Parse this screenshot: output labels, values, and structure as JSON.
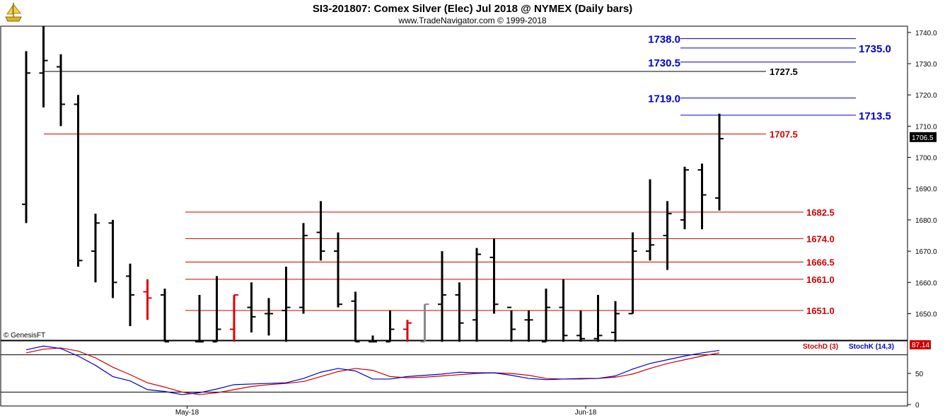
{
  "header": {
    "title": "SI3-201807:  Comex Silver (Elec) Jul 2018 @ NYMEX  (Daily bars)",
    "subtitle": "www.TradeNavigator.com © 1999-2018",
    "logo_icon": "pirate-ship-logo-icon"
  },
  "watermark": "© GenesisFT",
  "colors": {
    "blue_level": "#0000cc",
    "red_level": "#cc0000",
    "black_level": "#000000",
    "stoch_d": "#cc0000",
    "stoch_k": "#0000cc",
    "bar_black": "#000000",
    "bar_red": "#dd0000",
    "bar_gray": "#888888"
  },
  "chart_data": [
    {
      "type": "ohlc",
      "ylim": [
        1641.5,
        1742
      ],
      "y_ticks": [
        1650,
        1660,
        1670,
        1680,
        1690,
        1700,
        1710,
        1720,
        1730,
        1740
      ],
      "y_tick_labels": [
        "1650.0",
        "1660.0",
        "1670.0",
        "1680.0",
        "1690.0",
        "1700.0",
        "1710.0",
        "1720.0",
        "1730.0",
        "1740.0"
      ],
      "x_labels": [
        {
          "label": "May-18",
          "index": 9
        },
        {
          "label": "Jun-18",
          "index": 32
        }
      ],
      "current_price_label": "1706.5",
      "current_price": 1706.5,
      "bars": [
        {
          "i": 0,
          "o": 1685,
          "h": 1734,
          "l": 1679,
          "c": 1727,
          "color": "black"
        },
        {
          "i": 1,
          "o": 1727,
          "h": 1742,
          "l": 1716,
          "c": 1731,
          "color": "black"
        },
        {
          "i": 2,
          "o": 1729,
          "h": 1733,
          "l": 1710,
          "c": 1717,
          "color": "black"
        },
        {
          "i": 3,
          "o": 1717,
          "h": 1720,
          "l": 1665,
          "c": 1667,
          "color": "black"
        },
        {
          "i": 4,
          "o": 1670,
          "h": 1682,
          "l": 1660,
          "c": 1679,
          "color": "black"
        },
        {
          "i": 5,
          "o": 1679,
          "h": 1680,
          "l": 1655,
          "c": 1660,
          "color": "black"
        },
        {
          "i": 6,
          "o": 1662,
          "h": 1666,
          "l": 1646,
          "c": 1656,
          "color": "black"
        },
        {
          "i": 7,
          "o": 1657,
          "h": 1661,
          "l": 1648,
          "c": 1655,
          "color": "red"
        },
        {
          "i": 8,
          "o": 1656,
          "h": 1658,
          "l": 1641,
          "c": 1641,
          "color": "black"
        },
        {
          "i": 10,
          "o": 1641,
          "h": 1656,
          "l": 1641,
          "c": 1641,
          "color": "black"
        },
        {
          "i": 11,
          "o": 1641,
          "h": 1662,
          "l": 1641,
          "c": 1645,
          "color": "black"
        },
        {
          "i": 12,
          "o": 1645,
          "h": 1656,
          "l": 1641,
          "c": 1656,
          "color": "red"
        },
        {
          "i": 13,
          "o": 1652,
          "h": 1660,
          "l": 1644,
          "c": 1649,
          "color": "black"
        },
        {
          "i": 14,
          "o": 1650,
          "h": 1655,
          "l": 1643,
          "c": 1650,
          "color": "black"
        },
        {
          "i": 15,
          "o": 1651,
          "h": 1665,
          "l": 1641,
          "c": 1652,
          "color": "black"
        },
        {
          "i": 16,
          "o": 1652,
          "h": 1679,
          "l": 1650,
          "c": 1675,
          "color": "black"
        },
        {
          "i": 17,
          "o": 1676,
          "h": 1686,
          "l": 1667,
          "c": 1670,
          "color": "black"
        },
        {
          "i": 18,
          "o": 1670,
          "h": 1676,
          "l": 1652,
          "c": 1653,
          "color": "black"
        },
        {
          "i": 19,
          "o": 1654,
          "h": 1657,
          "l": 1641,
          "c": 1641,
          "color": "black"
        },
        {
          "i": 20,
          "o": 1641,
          "h": 1643,
          "l": 1641,
          "c": 1641,
          "color": "black"
        },
        {
          "i": 21,
          "o": 1641,
          "h": 1651,
          "l": 1641,
          "c": 1645,
          "color": "black"
        },
        {
          "i": 22,
          "o": 1645,
          "h": 1648,
          "l": 1641,
          "c": 1647,
          "color": "red"
        },
        {
          "i": 23,
          "o": 1641,
          "h": 1653,
          "l": 1641,
          "c": 1653,
          "color": "gray"
        },
        {
          "i": 24,
          "o": 1653,
          "h": 1670,
          "l": 1641,
          "c": 1656,
          "color": "black"
        },
        {
          "i": 25,
          "o": 1656,
          "h": 1660,
          "l": 1641,
          "c": 1647,
          "color": "black"
        },
        {
          "i": 26,
          "o": 1648,
          "h": 1671,
          "l": 1641,
          "c": 1669,
          "color": "black"
        },
        {
          "i": 27,
          "o": 1668,
          "h": 1674,
          "l": 1650,
          "c": 1653,
          "color": "black"
        },
        {
          "i": 28,
          "o": 1652,
          "h": 1651,
          "l": 1641,
          "c": 1645,
          "color": "black"
        },
        {
          "i": 29,
          "o": 1648,
          "h": 1651,
          "l": 1641,
          "c": 1648,
          "color": "black"
        },
        {
          "i": 30,
          "o": 1641,
          "h": 1658,
          "l": 1641,
          "c": 1652,
          "color": "black"
        },
        {
          "i": 31,
          "o": 1652,
          "h": 1661,
          "l": 1641,
          "c": 1643,
          "color": "black"
        },
        {
          "i": 32,
          "o": 1643,
          "h": 1651,
          "l": 1641,
          "c": 1642,
          "color": "black"
        },
        {
          "i": 33,
          "o": 1642,
          "h": 1656,
          "l": 1641,
          "c": 1643,
          "color": "black"
        },
        {
          "i": 34,
          "o": 1644,
          "h": 1654,
          "l": 1641,
          "c": 1650,
          "color": "black"
        },
        {
          "i": 35,
          "o": 1650,
          "h": 1676,
          "l": 1650,
          "c": 1670,
          "color": "black"
        },
        {
          "i": 36,
          "o": 1670,
          "h": 1693,
          "l": 1667,
          "c": 1672,
          "color": "black"
        },
        {
          "i": 37,
          "o": 1675,
          "h": 1686,
          "l": 1664,
          "c": 1682,
          "color": "black"
        },
        {
          "i": 38,
          "o": 1680,
          "h": 1697,
          "l": 1677,
          "c": 1696,
          "color": "black"
        },
        {
          "i": 39,
          "o": 1696,
          "h": 1698,
          "l": 1677,
          "c": 1688,
          "color": "black"
        },
        {
          "i": 40,
          "o": 1687,
          "h": 1714,
          "l": 1683,
          "c": 1706,
          "color": "black"
        }
      ],
      "levels": [
        {
          "value": 1738.0,
          "label": "1738.0",
          "color": "blue",
          "label_side": "left"
        },
        {
          "value": 1735.0,
          "label": "1735.0",
          "color": "blue",
          "label_side": "right"
        },
        {
          "value": 1730.5,
          "label": "1730.5",
          "color": "blue",
          "label_side": "left"
        },
        {
          "value": 1727.5,
          "label": "1727.5",
          "color": "black",
          "label_side": "right"
        },
        {
          "value": 1719.0,
          "label": "1719.0",
          "color": "blue",
          "label_side": "left"
        },
        {
          "value": 1713.5,
          "label": "1713.5",
          "color": "blue",
          "label_side": "right"
        },
        {
          "value": 1707.5,
          "label": "1707.5",
          "color": "red",
          "label_side": "right"
        },
        {
          "value": 1682.5,
          "label": "1682.5",
          "color": "red",
          "label_side": "right"
        },
        {
          "value": 1674.0,
          "label": "1674.0",
          "color": "red",
          "label_side": "right"
        },
        {
          "value": 1666.5,
          "label": "1666.5",
          "color": "red",
          "label_side": "right"
        },
        {
          "value": 1661.0,
          "label": "1661.0",
          "color": "red",
          "label_side": "right"
        },
        {
          "value": 1651.0,
          "label": "1651.0",
          "color": "red",
          "label_side": "right"
        }
      ]
    },
    {
      "type": "line",
      "ylim": [
        0,
        100
      ],
      "y_ticks": [
        0,
        50
      ],
      "y_tick_labels": [
        "0",
        "50"
      ],
      "reference_lines": [
        20,
        80
      ],
      "current_value_label": "87.14",
      "legend": [
        {
          "name": "StochD (3)",
          "color": "red"
        },
        {
          "name": "StochK (14,3)",
          "color": "blue"
        }
      ],
      "series": [
        {
          "key": "stoch_k",
          "color": "blue",
          "values": [
            88,
            94,
            90,
            78,
            63,
            45,
            38,
            24,
            21,
            16,
            19,
            25,
            32,
            33,
            34,
            35,
            42,
            52,
            58,
            54,
            41,
            41,
            45,
            47,
            49,
            52,
            51,
            51,
            47,
            42,
            40,
            41,
            42,
            42,
            46,
            57,
            66,
            72,
            78,
            83,
            87
          ]
        },
        {
          "key": "stoch_d",
          "color": "red",
          "values": [
            83,
            89,
            91,
            86,
            75,
            60,
            48,
            35,
            28,
            20,
            16,
            19,
            24,
            29,
            32,
            34,
            37,
            45,
            53,
            58,
            55,
            45,
            43,
            44,
            46,
            48,
            50,
            51,
            50,
            47,
            42,
            41,
            41,
            42,
            44,
            49,
            58,
            66,
            72,
            78,
            83
          ]
        }
      ]
    }
  ]
}
